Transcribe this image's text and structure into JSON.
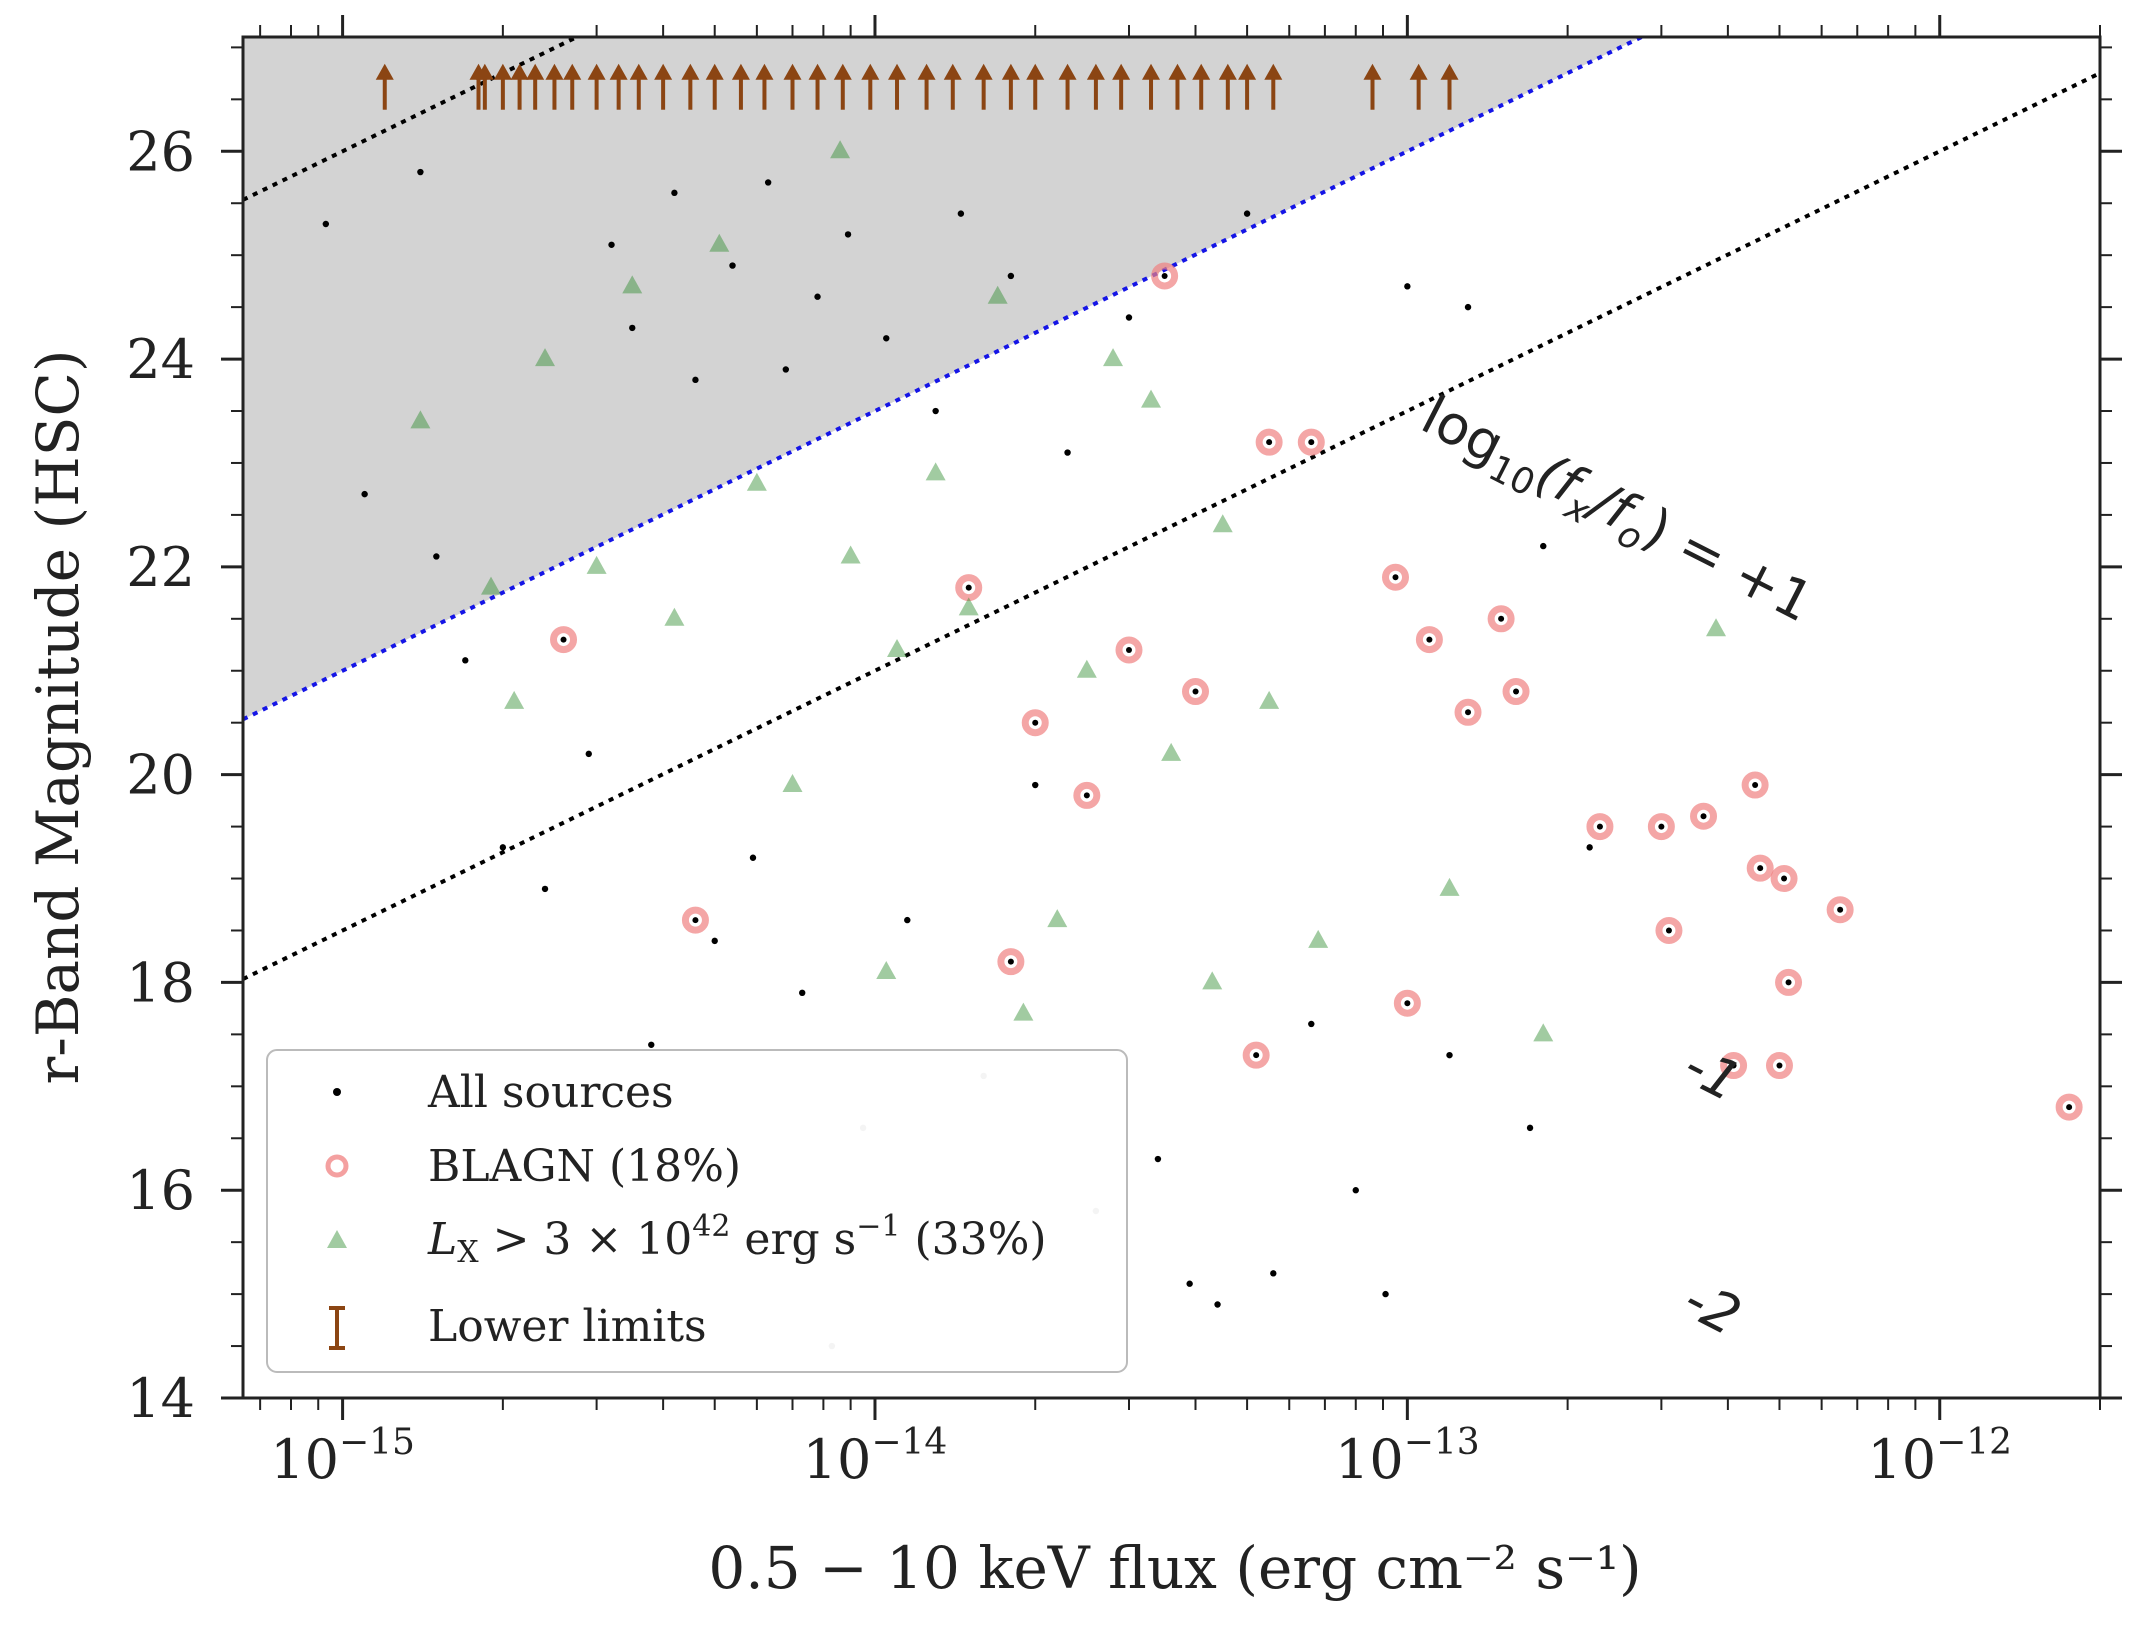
{
  "chart_data": {
    "type": "scatter",
    "title": "",
    "xlabel": "0.5 − 10 keV flux (erg cm⁻² s⁻¹)",
    "ylabel": "r-Band Magnitude (HSC)",
    "xscale": "log",
    "xlim": [
      6.5e-16,
      2e-12
    ],
    "ylim": [
      14,
      27.1
    ],
    "x_ticks": [
      1e-15,
      1e-14,
      1e-13,
      1e-12
    ],
    "x_tick_labels": [
      {
        "base": "10",
        "exp": "−15"
      },
      {
        "base": "10",
        "exp": "−14"
      },
      {
        "base": "10",
        "exp": "−13"
      },
      {
        "base": "10",
        "exp": "−12"
      }
    ],
    "y_ticks": [
      14,
      16,
      18,
      20,
      22,
      24,
      26
    ],
    "y_tick_labels": [
      "14",
      "16",
      "18",
      "20",
      "22",
      "24",
      "26"
    ],
    "grid": false,
    "legend_position": "bottom-left",
    "legend": [
      {
        "key": "all",
        "label": "All sources",
        "marker": "dot",
        "color": "#000000"
      },
      {
        "key": "blagn",
        "label": "BLAGN (18%)",
        "marker": "open-circle",
        "color": "#f08080"
      },
      {
        "key": "lx",
        "label": "L_X > 3 × 10^42 erg s^-1 (33%)",
        "label_parts": {
          "sym": "L",
          "sub": "X",
          "mid": " > 3 × 10",
          "exp": "42",
          "unit": " erg s",
          "unit_exp": "−1",
          "tail": " (33%)"
        },
        "marker": "triangle",
        "color": "#2e8b2e"
      },
      {
        "key": "lower",
        "label": "Lower limits",
        "marker": "errorbar",
        "color": "#8b4513"
      }
    ],
    "reference_lines": [
      {
        "label": "log₁₀(fₓ/fₒ) = +1",
        "log_fx_fo": 1,
        "color": "#000000",
        "style": "dotted"
      },
      {
        "label": "-1",
        "log_fx_fo": -1,
        "color": "#0000dd",
        "style": "dotted"
      },
      {
        "label": "-2",
        "log_fx_fo": -2,
        "color": "#000000",
        "style": "dotted"
      }
    ],
    "reference_relation": "r = 2.5 * log_fx_fo + 2.5 * log10(flux) + 61.0",
    "shaded_region": {
      "between": [
        -1,
        "top"
      ],
      "color": "#d3d3d3"
    },
    "series": [
      {
        "name": "Lower limits",
        "marker": "up-arrow",
        "r_mag": 26.4,
        "points": [
          {
            "x": 1.2e-15,
            "y": 26.4
          },
          {
            "x": 1.8e-15,
            "y": 26.4
          },
          {
            "x": 1.85e-15,
            "y": 26.4
          },
          {
            "x": 2e-15,
            "y": 26.4
          },
          {
            "x": 2.15e-15,
            "y": 26.4
          },
          {
            "x": 2.3e-15,
            "y": 26.4
          },
          {
            "x": 2.5e-15,
            "y": 26.4
          },
          {
            "x": 2.7e-15,
            "y": 26.4
          },
          {
            "x": 3e-15,
            "y": 26.4
          },
          {
            "x": 3.3e-15,
            "y": 26.4
          },
          {
            "x": 3.6e-15,
            "y": 26.4
          },
          {
            "x": 4e-15,
            "y": 26.4
          },
          {
            "x": 4.5e-15,
            "y": 26.4
          },
          {
            "x": 5e-15,
            "y": 26.4
          },
          {
            "x": 5.6e-15,
            "y": 26.4
          },
          {
            "x": 6.2e-15,
            "y": 26.4
          },
          {
            "x": 7e-15,
            "y": 26.4
          },
          {
            "x": 7.8e-15,
            "y": 26.4
          },
          {
            "x": 8.7e-15,
            "y": 26.4
          },
          {
            "x": 9.8e-15,
            "y": 26.4
          },
          {
            "x": 1.1e-14,
            "y": 26.4
          },
          {
            "x": 1.25e-14,
            "y": 26.4
          },
          {
            "x": 1.4e-14,
            "y": 26.4
          },
          {
            "x": 1.6e-14,
            "y": 26.4
          },
          {
            "x": 1.8e-14,
            "y": 26.4
          },
          {
            "x": 2e-14,
            "y": 26.4
          },
          {
            "x": 2.3e-14,
            "y": 26.4
          },
          {
            "x": 2.6e-14,
            "y": 26.4
          },
          {
            "x": 2.9e-14,
            "y": 26.4
          },
          {
            "x": 3.3e-14,
            "y": 26.4
          },
          {
            "x": 3.7e-14,
            "y": 26.4
          },
          {
            "x": 4.1e-14,
            "y": 26.4
          },
          {
            "x": 4.6e-14,
            "y": 26.4
          },
          {
            "x": 5e-14,
            "y": 26.4
          },
          {
            "x": 5.6e-14,
            "y": 26.4
          },
          {
            "x": 8.6e-14,
            "y": 26.4
          },
          {
            "x": 1.05e-13,
            "y": 26.4
          },
          {
            "x": 1.2e-13,
            "y": 26.4
          }
        ]
      },
      {
        "name": "All sources",
        "marker": "dot",
        "points": [
          {
            "x": 9.3e-16,
            "y": 25.3
          },
          {
            "x": 1.1e-15,
            "y": 22.7
          },
          {
            "x": 1.4e-15,
            "y": 25.8
          },
          {
            "x": 1.5e-15,
            "y": 22.1
          },
          {
            "x": 1.7e-15,
            "y": 21.1
          },
          {
            "x": 2e-15,
            "y": 19.3
          },
          {
            "x": 2.4e-15,
            "y": 18.9
          },
          {
            "x": 2.9e-15,
            "y": 20.2
          },
          {
            "x": 3.2e-15,
            "y": 25.1
          },
          {
            "x": 3.5e-15,
            "y": 24.3
          },
          {
            "x": 3.8e-15,
            "y": 17.4
          },
          {
            "x": 4.2e-15,
            "y": 25.6
          },
          {
            "x": 4.6e-15,
            "y": 23.8
          },
          {
            "x": 5e-15,
            "y": 18.4
          },
          {
            "x": 5.4e-15,
            "y": 24.9
          },
          {
            "x": 5.9e-15,
            "y": 19.2
          },
          {
            "x": 6.3e-15,
            "y": 25.7
          },
          {
            "x": 6.8e-15,
            "y": 23.9
          },
          {
            "x": 7.3e-15,
            "y": 17.9
          },
          {
            "x": 7.8e-15,
            "y": 24.6
          },
          {
            "x": 8.3e-15,
            "y": 14.5
          },
          {
            "x": 8.9e-15,
            "y": 25.2
          },
          {
            "x": 9.5e-15,
            "y": 16.6
          },
          {
            "x": 1.05e-14,
            "y": 24.2
          },
          {
            "x": 1.15e-14,
            "y": 18.6
          },
          {
            "x": 1.3e-14,
            "y": 23.5
          },
          {
            "x": 1.45e-14,
            "y": 25.4
          },
          {
            "x": 1.6e-14,
            "y": 17.1
          },
          {
            "x": 1.8e-14,
            "y": 24.8
          },
          {
            "x": 2e-14,
            "y": 19.9
          },
          {
            "x": 2.3e-14,
            "y": 23.1
          },
          {
            "x": 2.6e-14,
            "y": 15.8
          },
          {
            "x": 3e-14,
            "y": 24.4
          },
          {
            "x": 3.4e-14,
            "y": 16.3
          },
          {
            "x": 3.9e-14,
            "y": 15.1
          },
          {
            "x": 4.4e-14,
            "y": 14.9
          },
          {
            "x": 5e-14,
            "y": 25.4
          },
          {
            "x": 5.6e-14,
            "y": 15.2
          },
          {
            "x": 6.6e-14,
            "y": 17.6
          },
          {
            "x": 8e-14,
            "y": 16.0
          },
          {
            "x": 9.1e-14,
            "y": 15.0
          },
          {
            "x": 1e-13,
            "y": 24.7
          },
          {
            "x": 1.2e-13,
            "y": 17.3
          },
          {
            "x": 1.3e-13,
            "y": 24.5
          },
          {
            "x": 1.7e-13,
            "y": 16.6
          },
          {
            "x": 1.8e-13,
            "y": 22.2
          },
          {
            "x": 2.2e-13,
            "y": 19.3
          }
        ]
      },
      {
        "name": "BLAGN (18%)",
        "marker": "open-circle",
        "points": [
          {
            "x": 3.5e-14,
            "y": 24.8
          },
          {
            "x": 5.5e-14,
            "y": 23.2
          },
          {
            "x": 6.6e-14,
            "y": 23.2
          },
          {
            "x": 9.5e-14,
            "y": 21.9
          },
          {
            "x": 1.1e-13,
            "y": 21.3
          },
          {
            "x": 1.3e-13,
            "y": 20.6
          },
          {
            "x": 1.5e-13,
            "y": 21.5
          },
          {
            "x": 1.6e-13,
            "y": 20.8
          },
          {
            "x": 2.3e-13,
            "y": 19.5
          },
          {
            "x": 3e-13,
            "y": 19.5
          },
          {
            "x": 3.1e-13,
            "y": 18.5
          },
          {
            "x": 3.6e-13,
            "y": 19.6
          },
          {
            "x": 4.5e-13,
            "y": 19.9
          },
          {
            "x": 4.6e-13,
            "y": 19.1
          },
          {
            "x": 5.1e-13,
            "y": 19.0
          },
          {
            "x": 5.2e-13,
            "y": 18.0
          },
          {
            "x": 6.5e-13,
            "y": 18.7
          },
          {
            "x": 4.1e-13,
            "y": 17.2
          },
          {
            "x": 5e-13,
            "y": 17.2
          },
          {
            "x": 1.75e-12,
            "y": 16.8
          },
          {
            "x": 1e-13,
            "y": 17.8
          },
          {
            "x": 5.2e-14,
            "y": 17.3
          },
          {
            "x": 1.8e-14,
            "y": 18.2
          },
          {
            "x": 2.6e-15,
            "y": 21.3
          },
          {
            "x": 4.6e-15,
            "y": 18.6
          },
          {
            "x": 2e-14,
            "y": 20.5
          },
          {
            "x": 3e-14,
            "y": 21.2
          },
          {
            "x": 4e-14,
            "y": 20.8
          },
          {
            "x": 2.5e-14,
            "y": 19.8
          },
          {
            "x": 1.5e-14,
            "y": 21.8
          }
        ]
      },
      {
        "name": "L_X > 3 × 10^42 erg s^-1 (33%)",
        "marker": "triangle",
        "points": [
          {
            "x": 1.4e-15,
            "y": 23.4
          },
          {
            "x": 1.9e-15,
            "y": 21.8
          },
          {
            "x": 2.1e-15,
            "y": 20.7
          },
          {
            "x": 2.4e-15,
            "y": 24.0
          },
          {
            "x": 3e-15,
            "y": 22.0
          },
          {
            "x": 3.5e-15,
            "y": 24.7
          },
          {
            "x": 4.2e-15,
            "y": 21.5
          },
          {
            "x": 5.1e-15,
            "y": 25.1
          },
          {
            "x": 6e-15,
            "y": 22.8
          },
          {
            "x": 7e-15,
            "y": 19.9
          },
          {
            "x": 8.6e-15,
            "y": 26.0
          },
          {
            "x": 1.05e-14,
            "y": 18.1
          },
          {
            "x": 1.3e-14,
            "y": 22.9
          },
          {
            "x": 1.7e-14,
            "y": 24.6
          },
          {
            "x": 1.9e-14,
            "y": 17.7
          },
          {
            "x": 2.8e-14,
            "y": 24.0
          },
          {
            "x": 3.3e-14,
            "y": 23.6
          },
          {
            "x": 4.3e-14,
            "y": 18.0
          },
          {
            "x": 2.2e-14,
            "y": 18.6
          },
          {
            "x": 6.8e-14,
            "y": 18.4
          },
          {
            "x": 1.2e-13,
            "y": 18.9
          },
          {
            "x": 1.8e-13,
            "y": 17.5
          },
          {
            "x": 3.8e-13,
            "y": 21.4
          },
          {
            "x": 1.5e-14,
            "y": 21.6
          },
          {
            "x": 2.5e-14,
            "y": 21.0
          },
          {
            "x": 9e-15,
            "y": 22.1
          },
          {
            "x": 3.6e-14,
            "y": 20.2
          },
          {
            "x": 5.5e-14,
            "y": 20.7
          },
          {
            "x": 1.1e-14,
            "y": 21.2
          },
          {
            "x": 4.5e-14,
            "y": 22.4
          }
        ]
      }
    ]
  },
  "annotations": {
    "line_plus1": {
      "base": "log",
      "sub": "10",
      "body": "(f",
      "sub2": "x",
      "mid": "/f",
      "sub3": "o",
      "tail": ") = +1"
    },
    "line_minus1": "-1",
    "line_minus2": "-2"
  },
  "colors": {
    "shade": "#d3d3d3",
    "blue_line": "#1515e6",
    "dots": "#000000",
    "blagn": "#f08080",
    "lx": "#2e8b2e",
    "lower": "#8b4513"
  }
}
